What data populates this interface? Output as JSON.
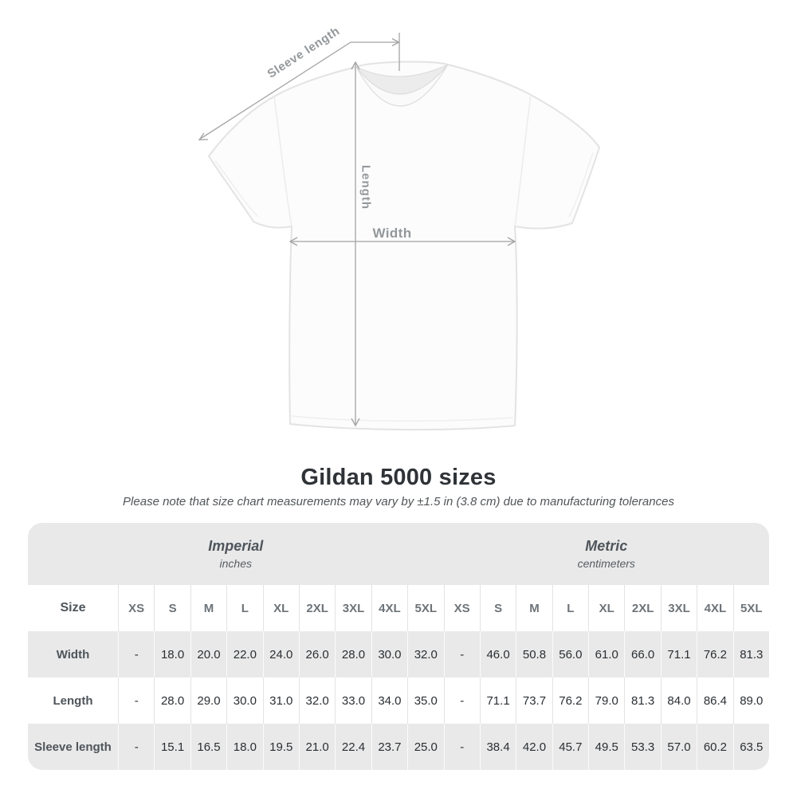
{
  "figure": {
    "sleeve_length_label": "Sleeve length",
    "length_label": "Length",
    "width_label": "Width"
  },
  "title": "Gildan 5000 sizes",
  "subtitle": "Please note that size chart measurements may vary by ±1.5 in (3.8 cm) due to manufacturing tolerances",
  "table": {
    "size_col_header": "Size",
    "unit_groups": [
      {
        "label": "Imperial",
        "sublabel": "inches"
      },
      {
        "label": "Metric",
        "sublabel": "centimeters"
      }
    ],
    "imperial_sizes": [
      "XS",
      "S",
      "M",
      "L",
      "XL",
      "2XL",
      "3XL",
      "4XL",
      "5XL"
    ],
    "metric_sizes": [
      "XS",
      "S",
      "M",
      "L",
      "XL",
      "2XL",
      "3XL",
      "4XL",
      "5XL"
    ],
    "rows": [
      {
        "label": "Width",
        "imperial": [
          "-",
          "18.0",
          "20.0",
          "22.0",
          "24.0",
          "26.0",
          "28.0",
          "30.0",
          "32.0"
        ],
        "metric": [
          "-",
          "46.0",
          "50.8",
          "56.0",
          "61.0",
          "66.0",
          "71.1",
          "76.2",
          "81.3"
        ]
      },
      {
        "label": "Length",
        "imperial": [
          "-",
          "28.0",
          "29.0",
          "30.0",
          "31.0",
          "32.0",
          "33.0",
          "34.0",
          "35.0"
        ],
        "metric": [
          "-",
          "71.1",
          "73.7",
          "76.2",
          "79.0",
          "81.3",
          "84.0",
          "86.4",
          "89.0"
        ]
      },
      {
        "label": "Sleeve length",
        "imperial": [
          "-",
          "15.1",
          "16.5",
          "18.0",
          "19.5",
          "21.0",
          "22.4",
          "23.7",
          "25.0"
        ],
        "metric": [
          "-",
          "38.4",
          "42.0",
          "45.7",
          "49.5",
          "53.3",
          "57.0",
          "60.2",
          "63.5"
        ]
      }
    ]
  },
  "chart_data": {
    "type": "table",
    "title": "Gildan 5000 sizes",
    "columns": [
      "Size",
      "XS",
      "S",
      "M",
      "L",
      "XL",
      "2XL",
      "3XL",
      "4XL",
      "5XL (in)",
      "XS",
      "S",
      "M",
      "L",
      "XL",
      "2XL",
      "3XL",
      "4XL",
      "5XL (cm)"
    ],
    "rows": [
      [
        "Width",
        "-",
        18.0,
        20.0,
        22.0,
        24.0,
        26.0,
        28.0,
        30.0,
        32.0,
        "-",
        46.0,
        50.8,
        56.0,
        61.0,
        66.0,
        71.1,
        76.2,
        81.3
      ],
      [
        "Length",
        "-",
        28.0,
        29.0,
        30.0,
        31.0,
        32.0,
        33.0,
        34.0,
        35.0,
        "-",
        71.1,
        73.7,
        76.2,
        79.0,
        81.3,
        84.0,
        86.4,
        89.0
      ],
      [
        "Sleeve length",
        "-",
        15.1,
        16.5,
        18.0,
        19.5,
        21.0,
        22.4,
        23.7,
        25.0,
        "-",
        38.4,
        42.0,
        45.7,
        49.5,
        53.3,
        57.0,
        60.2,
        63.5
      ]
    ]
  },
  "colors": {
    "band_gray": "#e9e9e9",
    "stripe_gray": "#e9e9e9",
    "annotation_gray": "#94989b",
    "dimension_line_gray": "#a3a3a3",
    "value_text": "#2b2f33",
    "label_text": "#4e555b"
  }
}
